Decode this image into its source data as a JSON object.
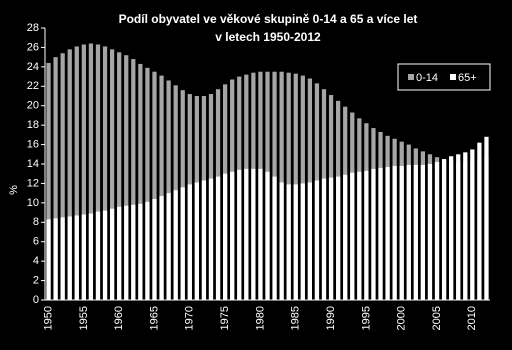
{
  "chart_data": {
    "type": "bar",
    "title": [
      "Podíl obyvatel ve věkové skupině 0-14 a 65 a více let",
      "v letech 1950-2012"
    ],
    "y_label": "%",
    "categories": [
      "1950",
      null,
      null,
      null,
      null,
      "1955",
      null,
      null,
      null,
      null,
      "1960",
      null,
      null,
      null,
      null,
      "1965",
      null,
      null,
      null,
      null,
      "1970",
      null,
      null,
      null,
      null,
      "1975",
      null,
      null,
      null,
      null,
      "1980",
      null,
      null,
      null,
      null,
      "1985",
      null,
      null,
      null,
      null,
      "1990",
      null,
      null,
      null,
      null,
      "1995",
      null,
      null,
      null,
      null,
      "2000",
      null,
      null,
      null,
      null,
      "2005",
      null,
      null,
      null,
      null,
      "2010",
      null,
      null
    ],
    "series": [
      {
        "name": "0-14",
        "color": "#a6a6a6",
        "values": [
          24.4,
          25.0,
          25.4,
          25.8,
          26.1,
          26.3,
          26.4,
          26.3,
          26.1,
          25.8,
          25.5,
          25.2,
          24.8,
          24.3,
          23.9,
          23.5,
          23.1,
          22.6,
          22.1,
          21.6,
          21.2,
          21.0,
          21.0,
          21.2,
          21.7,
          22.2,
          22.7,
          23.0,
          23.2,
          23.4,
          23.5,
          23.5,
          23.5,
          23.5,
          23.4,
          23.3,
          23.1,
          22.8,
          22.3,
          21.7,
          21.1,
          20.5,
          19.9,
          19.3,
          18.7,
          18.2,
          17.7,
          17.3,
          16.9,
          16.6,
          16.3,
          16.0,
          15.6,
          15.3,
          15.0,
          14.7,
          14.5,
          14.3,
          14.2,
          14.2,
          14.3,
          14.5,
          14.8
        ]
      },
      {
        "name": "65+",
        "color": "#ffffff",
        "values": [
          8.3,
          8.4,
          8.5,
          8.6,
          8.7,
          8.8,
          8.9,
          9.1,
          9.2,
          9.4,
          9.6,
          9.7,
          9.8,
          9.9,
          10.1,
          10.4,
          10.7,
          11.0,
          11.3,
          11.6,
          11.9,
          12.1,
          12.3,
          12.5,
          12.7,
          13.0,
          13.2,
          13.4,
          13.5,
          13.5,
          13.5,
          13.2,
          12.7,
          12.1,
          11.9,
          11.9,
          12.0,
          12.1,
          12.3,
          12.5,
          12.6,
          12.7,
          12.9,
          13.1,
          13.2,
          13.3,
          13.5,
          13.6,
          13.7,
          13.8,
          13.8,
          13.9,
          13.9,
          13.9,
          14.0,
          14.2,
          14.5,
          14.8,
          15.0,
          15.2,
          15.5,
          16.2,
          16.8
        ]
      }
    ],
    "ylim": [
      0,
      28
    ],
    "yticks": [
      0,
      2,
      4,
      6,
      8,
      10,
      12,
      14,
      16,
      18,
      20,
      22,
      24,
      26,
      28
    ],
    "legend": "upper right"
  }
}
